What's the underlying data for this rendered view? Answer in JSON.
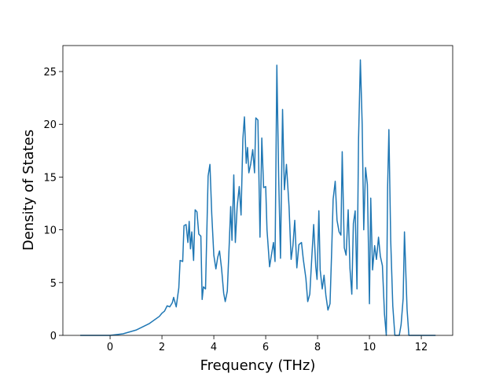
{
  "chart_data": {
    "type": "line",
    "xlabel": "Frequency (THz)",
    "ylabel": "Density of States",
    "color": "#1f77b4",
    "xlim": [
      -1.82,
      13.21
    ],
    "ylim": [
      0,
      27.46
    ],
    "xticks": [
      0,
      2,
      4,
      6,
      8,
      10,
      12
    ],
    "yticks": [
      0,
      5,
      10,
      15,
      20,
      25
    ],
    "grid": false,
    "x": [
      -1.15,
      0,
      0.5,
      1.0,
      1.5,
      1.9,
      2.0,
      2.1,
      2.2,
      2.3,
      2.4,
      2.45,
      2.55,
      2.65,
      2.7,
      2.8,
      2.85,
      2.93,
      3.0,
      3.05,
      3.1,
      3.15,
      3.22,
      3.28,
      3.35,
      3.42,
      3.5,
      3.55,
      3.6,
      3.68,
      3.78,
      3.85,
      3.92,
      4.0,
      4.08,
      4.15,
      4.22,
      4.3,
      4.38,
      4.44,
      4.52,
      4.6,
      4.65,
      4.7,
      4.77,
      4.83,
      4.9,
      4.98,
      5.05,
      5.12,
      5.18,
      5.25,
      5.3,
      5.35,
      5.42,
      5.5,
      5.57,
      5.62,
      5.7,
      5.78,
      5.85,
      5.92,
      6.0,
      6.05,
      6.15,
      6.22,
      6.3,
      6.36,
      6.43,
      6.5,
      6.57,
      6.65,
      6.72,
      6.8,
      6.9,
      6.98,
      7.05,
      7.12,
      7.2,
      7.28,
      7.38,
      7.45,
      7.55,
      7.62,
      7.7,
      7.78,
      7.85,
      7.93,
      7.98,
      8.05,
      8.1,
      8.18,
      8.25,
      8.32,
      8.4,
      8.48,
      8.55,
      8.6,
      8.68,
      8.75,
      8.83,
      8.9,
      8.95,
      9.03,
      9.1,
      9.18,
      9.25,
      9.32,
      9.38,
      9.45,
      9.52,
      9.58,
      9.65,
      9.72,
      9.78,
      9.85,
      9.92,
      10.0,
      10.05,
      10.12,
      10.2,
      10.27,
      10.35,
      10.42,
      10.5,
      10.58,
      10.65,
      10.7,
      10.75,
      10.82,
      10.9,
      10.98,
      11.15,
      11.22,
      11.3,
      11.35,
      11.45,
      11.52,
      12.55
    ],
    "values": [
      0,
      0,
      0.15,
      0.5,
      1.1,
      1.8,
      2.1,
      2.3,
      2.8,
      2.7,
      3.1,
      3.6,
      2.7,
      4.5,
      7.1,
      7.0,
      10.4,
      10.5,
      8.8,
      10.8,
      8.2,
      9.8,
      7.1,
      11.9,
      11.7,
      9.6,
      9.4,
      3.4,
      4.6,
      4.4,
      15.1,
      16.2,
      11.5,
      7.6,
      6.3,
      7.4,
      8.0,
      6.3,
      4.0,
      3.2,
      4.2,
      9.0,
      12.2,
      9.0,
      15.2,
      8.8,
      12.2,
      14.1,
      11.4,
      18.6,
      20.7,
      16.3,
      17.8,
      15.4,
      16.2,
      17.6,
      15.4,
      20.6,
      20.4,
      9.3,
      18.7,
      14.0,
      14.1,
      10.0,
      6.5,
      7.6,
      8.8,
      7.0,
      25.6,
      15.0,
      7.3,
      21.4,
      13.8,
      16.2,
      12.2,
      7.2,
      8.5,
      10.9,
      6.4,
      8.6,
      8.8,
      7.2,
      5.4,
      3.2,
      3.9,
      7.5,
      10.5,
      6.5,
      5.3,
      11.8,
      6.2,
      4.4,
      5.7,
      3.8,
      2.4,
      3.0,
      8.5,
      12.9,
      14.6,
      10.9,
      9.8,
      9.5,
      17.4,
      8.3,
      7.6,
      11.9,
      6.3,
      3.9,
      10.6,
      11.8,
      4.4,
      18.6,
      26.1,
      20.0,
      10.0,
      15.9,
      14.3,
      3.0,
      13.0,
      6.2,
      8.5,
      7.2,
      9.3,
      7.5,
      6.6,
      2.0,
      0,
      14.0,
      19.5,
      9.0,
      2.8,
      0,
      0,
      1.0,
      3.5,
      9.8,
      2.5,
      0,
      0
    ]
  }
}
